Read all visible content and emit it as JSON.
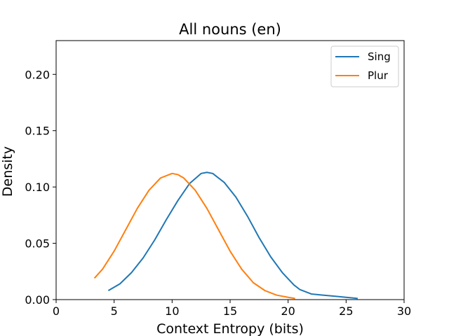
{
  "chart_data": {
    "type": "line",
    "title": "All nouns (en)",
    "xlabel": "Context Entropy (bits)",
    "ylabel": "Density",
    "xlim": [
      0,
      30
    ],
    "ylim": [
      0,
      0.23
    ],
    "xticks": [
      0,
      5,
      10,
      15,
      20,
      25,
      30
    ],
    "xtick_labels": [
      "0",
      "5",
      "10",
      "15",
      "20",
      "25",
      "30"
    ],
    "yticks": [
      0.0,
      0.05,
      0.1,
      0.15,
      0.2
    ],
    "ytick_labels": [
      "0.00",
      "0.05",
      "0.10",
      "0.15",
      "0.20"
    ],
    "grid": false,
    "legend_position": "top-right",
    "series": [
      {
        "name": "Sing",
        "color": "#1f77b4",
        "x": [
          4.5,
          5.5,
          6.5,
          7.5,
          8.5,
          9.5,
          10.5,
          11.5,
          12.5,
          13.0,
          13.5,
          14.5,
          15.5,
          16.5,
          17.5,
          18.5,
          19.5,
          20.5,
          21.0,
          22.0,
          23.0,
          24.0,
          25.0,
          26.0
        ],
        "values": [
          0.008,
          0.014,
          0.024,
          0.037,
          0.053,
          0.071,
          0.088,
          0.103,
          0.112,
          0.113,
          0.112,
          0.104,
          0.091,
          0.074,
          0.055,
          0.038,
          0.024,
          0.013,
          0.009,
          0.005,
          0.004,
          0.003,
          0.002,
          0.001
        ]
      },
      {
        "name": "Plur",
        "color": "#ff7f0e",
        "x": [
          3.3,
          4.0,
          5.0,
          6.0,
          7.0,
          8.0,
          9.0,
          10.0,
          10.5,
          11.0,
          12.0,
          13.0,
          14.0,
          15.0,
          16.0,
          17.0,
          18.0,
          19.0,
          20.0,
          20.6
        ],
        "values": [
          0.019,
          0.027,
          0.043,
          0.062,
          0.081,
          0.097,
          0.108,
          0.112,
          0.111,
          0.108,
          0.097,
          0.081,
          0.062,
          0.043,
          0.027,
          0.015,
          0.008,
          0.004,
          0.002,
          0.001
        ]
      }
    ]
  }
}
